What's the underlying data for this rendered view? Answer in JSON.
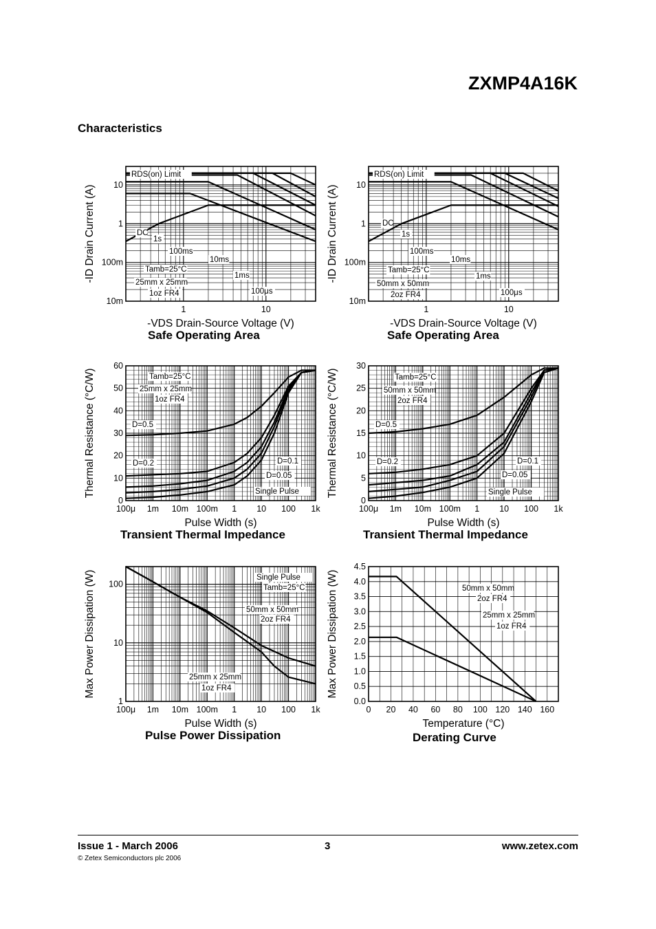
{
  "header": {
    "part_number": "ZXMP4A16K"
  },
  "section_title": "Characteristics",
  "footer": {
    "issue": "Issue 1 - March 2006",
    "page": "3",
    "website": "www.zetex.com",
    "copyright": "© Zetex Semiconductors plc 2006"
  },
  "chart_data": [
    {
      "type": "line",
      "title": "Safe Operating Area",
      "xscale": "log",
      "yscale": "log",
      "xlabel": "-VDS  Drain-Source Voltage (V)",
      "ylabel": "-ID  Drain Current (A)",
      "xlim": [
        0.2,
        40
      ],
      "ylim": [
        0.01,
        30
      ],
      "x_ticks": [
        "1",
        "10"
      ],
      "y_ticks": [
        "10m",
        "100m",
        "1",
        "10"
      ],
      "annotations": [
        "RDS(on) Limit",
        "DC",
        "1s",
        "100ms",
        "10ms",
        "1ms",
        "100μs",
        "Tamb=25°C",
        "25mm x 25mm",
        "1oz FR4"
      ],
      "series": [
        {
          "x": [
            0.2,
            0.5,
            2,
            40
          ],
          "y": [
            0.35,
            1.0,
            3.0,
            3.0
          ]
        },
        {
          "x": [
            0.2,
            1.2,
            40
          ],
          "y": [
            6.0,
            6.0,
            0.35
          ]
        },
        {
          "x": [
            0.2,
            2.0,
            40
          ],
          "y": [
            12.0,
            12.0,
            0.7
          ]
        },
        {
          "x": [
            0.2,
            4.5,
            40
          ],
          "y": [
            18.0,
            18.0,
            1.6
          ]
        },
        {
          "x": [
            0.2,
            7.0,
            40
          ],
          "y": [
            20.0,
            20.0,
            3.0
          ]
        },
        {
          "x": [
            0.2,
            12.0,
            40
          ],
          "y": [
            20.0,
            20.0,
            5.0
          ]
        },
        {
          "x": [
            0.2,
            20.0,
            40
          ],
          "y": [
            20.0,
            20.0,
            10.0
          ]
        }
      ]
    },
    {
      "type": "line",
      "title": "Safe Operating Area",
      "xscale": "log",
      "yscale": "log",
      "xlabel": "-VDS  Drain-Source Voltage (V)",
      "ylabel": "-ID  Drain Current (A)",
      "xlim": [
        0.2,
        40
      ],
      "ylim": [
        0.01,
        30
      ],
      "x_ticks": [
        "1",
        "10"
      ],
      "y_ticks": [
        "10m",
        "100m",
        "1",
        "10"
      ],
      "annotations": [
        "RDS(on) Limit",
        "DC",
        "1s",
        "100ms",
        "10ms",
        "1ms",
        "100μs",
        "Tamb=25°C",
        "50mm x 50mm",
        "2oz FR4"
      ],
      "series": [
        {
          "x": [
            0.2,
            0.5,
            2,
            40
          ],
          "y": [
            0.35,
            1.0,
            3.0,
            3.0
          ]
        },
        {
          "x": [
            0.2,
            2.0,
            40
          ],
          "y": [
            12.0,
            12.0,
            0.7
          ]
        },
        {
          "x": [
            0.2,
            3.5,
            40
          ],
          "y": [
            18.0,
            18.0,
            1.5
          ]
        },
        {
          "x": [
            0.2,
            6.0,
            40
          ],
          "y": [
            20.0,
            20.0,
            2.8
          ]
        },
        {
          "x": [
            0.2,
            9.0,
            40
          ],
          "y": [
            20.0,
            20.0,
            4.5
          ]
        },
        {
          "x": [
            0.2,
            15.0,
            40
          ],
          "y": [
            20.0,
            20.0,
            7.0
          ]
        }
      ]
    },
    {
      "type": "line",
      "title": "Transient Thermal Impedance",
      "xscale": "log",
      "yscale": "linear",
      "xlabel": "Pulse Width (s)",
      "ylabel": "Thermal Resistance (°C/W)",
      "xlim": [
        0.0001,
        1000
      ],
      "ylim": [
        0,
        60
      ],
      "x_ticks": [
        "100μ",
        "1m",
        "10m",
        "100m",
        "1",
        "10",
        "100",
        "1k"
      ],
      "y_ticks": [
        "0",
        "10",
        "20",
        "30",
        "40",
        "50",
        "60"
      ],
      "annotations": [
        "Tamb=25°C",
        "25mm x 25mm",
        "1oz FR4",
        "D=0.5",
        "D=0.2",
        "D=0.1",
        "D=0.05",
        "Single Pulse"
      ],
      "series": [
        {
          "name": "D=0.5",
          "x": [
            0.0001,
            0.001,
            0.01,
            0.1,
            1,
            3,
            10,
            30,
            100,
            300,
            1000
          ],
          "y": [
            29,
            29.3,
            30,
            31,
            34,
            37,
            42,
            48,
            55,
            58,
            58
          ]
        },
        {
          "name": "D=0.2",
          "x": [
            0.0001,
            0.001,
            0.01,
            0.1,
            1,
            3,
            10,
            30,
            100,
            300,
            1000
          ],
          "y": [
            11,
            11.5,
            12,
            13,
            17,
            21,
            28,
            38,
            51,
            57,
            58
          ]
        },
        {
          "name": "D=0.1",
          "x": [
            0.0001,
            0.001,
            0.01,
            0.1,
            1,
            3,
            10,
            30,
            100,
            300,
            1000
          ],
          "y": [
            6,
            6.5,
            7.5,
            9,
            13,
            17,
            24,
            35,
            50,
            57,
            58
          ]
        },
        {
          "name": "D=0.05",
          "x": [
            0.0001,
            0.001,
            0.01,
            0.1,
            1,
            3,
            10,
            30,
            100,
            300,
            1000
          ],
          "y": [
            3.5,
            4,
            5,
            6.5,
            10,
            14,
            21,
            33,
            49,
            57,
            58
          ]
        },
        {
          "name": "Single Pulse",
          "x": [
            0.0001,
            0.001,
            0.01,
            0.1,
            1,
            3,
            10,
            30,
            100,
            300,
            1000
          ],
          "y": [
            1,
            1.5,
            2.5,
            4,
            7,
            11,
            18,
            30,
            48,
            57,
            58
          ]
        }
      ]
    },
    {
      "type": "line",
      "title": "Transient Thermal Impedance",
      "xscale": "log",
      "yscale": "linear",
      "xlabel": "Pulse Width (s)",
      "ylabel": "Thermal Resistance (°C/W)",
      "xlim": [
        0.0001,
        1000
      ],
      "ylim": [
        0,
        30
      ],
      "x_ticks": [
        "100μ",
        "1m",
        "10m",
        "100m",
        "1",
        "10",
        "100",
        "1k"
      ],
      "y_ticks": [
        "0",
        "5",
        "10",
        "15",
        "20",
        "25",
        "30"
      ],
      "annotations": [
        "Tamb=25°C",
        "50mm x 50mm",
        "2oz FR4",
        "D=0.5",
        "D=0.2",
        "D=0.1",
        "D=0.05",
        "Single Pulse"
      ],
      "series": [
        {
          "name": "D=0.5",
          "x": [
            0.0001,
            0.001,
            0.01,
            0.1,
            1,
            10,
            100,
            300,
            1000
          ],
          "y": [
            15,
            15.3,
            16,
            17,
            19,
            23,
            28,
            29.5,
            29.5
          ]
        },
        {
          "name": "D=0.2",
          "x": [
            0.0001,
            0.001,
            0.01,
            0.1,
            1,
            10,
            100,
            300,
            1000
          ],
          "y": [
            6,
            6.3,
            7,
            8,
            10,
            15,
            25,
            29,
            29.5
          ]
        },
        {
          "name": "D=0.1",
          "x": [
            0.0001,
            0.001,
            0.01,
            0.1,
            1,
            10,
            100,
            300,
            1000
          ],
          "y": [
            3.5,
            4,
            4.5,
            5.5,
            8,
            13,
            24,
            29,
            29.5
          ]
        },
        {
          "name": "D=0.05",
          "x": [
            0.0001,
            0.001,
            0.01,
            0.1,
            1,
            10,
            100,
            300,
            1000
          ],
          "y": [
            2,
            2.5,
            3,
            4.5,
            6.5,
            12,
            23,
            29,
            29.5
          ]
        },
        {
          "name": "Single Pulse",
          "x": [
            0.0001,
            0.001,
            0.01,
            0.1,
            1,
            10,
            100,
            300,
            1000
          ],
          "y": [
            0.5,
            1,
            1.8,
            3,
            5,
            10.5,
            22,
            28.5,
            29.5
          ]
        }
      ]
    },
    {
      "type": "line",
      "title": "Pulse Power Dissipation",
      "xscale": "log",
      "yscale": "log",
      "xlabel": "Pulse Width (s)",
      "ylabel": "Max Power Dissipation (W)",
      "xlim": [
        0.0001,
        1000
      ],
      "ylim": [
        1,
        200
      ],
      "x_ticks": [
        "100μ",
        "1m",
        "10m",
        "100m",
        "1",
        "10",
        "100",
        "1k"
      ],
      "y_ticks": [
        "1",
        "10",
        "100"
      ],
      "annotations": [
        "Single Pulse",
        "Tamb=25°C",
        "50mm x 50mm",
        "2oz FR4",
        "25mm x 25mm",
        "1oz FR4"
      ],
      "series": [
        {
          "name": "50mm x 50mm 2oz FR4",
          "x": [
            0.0001,
            0.001,
            0.01,
            0.1,
            1,
            10,
            100,
            1000
          ],
          "y": [
            200,
            110,
            60,
            35,
            18,
            9,
            5.5,
            4
          ]
        },
        {
          "name": "25mm x 25mm 1oz FR4",
          "x": [
            0.0001,
            0.001,
            0.01,
            0.1,
            1,
            10,
            30,
            100,
            1000
          ],
          "y": [
            200,
            110,
            60,
            33,
            15,
            7,
            4,
            2.6,
            2.0
          ]
        }
      ]
    },
    {
      "type": "line",
      "title": "Derating Curve",
      "xlabel": "Temperature (°C)",
      "ylabel": "Max Power Dissipation (W)",
      "xlim": [
        0,
        170
      ],
      "ylim": [
        0,
        4.5
      ],
      "x_ticks": [
        "0",
        "20",
        "40",
        "60",
        "80",
        "100",
        "120",
        "140",
        "160"
      ],
      "y_ticks": [
        "0.0",
        "0.5",
        "1.0",
        "1.5",
        "2.0",
        "2.5",
        "3.0",
        "3.5",
        "4.0",
        "4.5"
      ],
      "annotations": [
        "50mm x 50mm",
        "2oz FR4",
        "25mm x 25mm",
        "1oz FR4"
      ],
      "series": [
        {
          "name": "50mm x 50mm 2oz FR4",
          "x": [
            0,
            25,
            150
          ],
          "y": [
            4.17,
            4.17,
            0
          ]
        },
        {
          "name": "25mm x 25mm 1oz FR4",
          "x": [
            0,
            25,
            150
          ],
          "y": [
            2.14,
            2.14,
            0
          ]
        }
      ]
    }
  ]
}
